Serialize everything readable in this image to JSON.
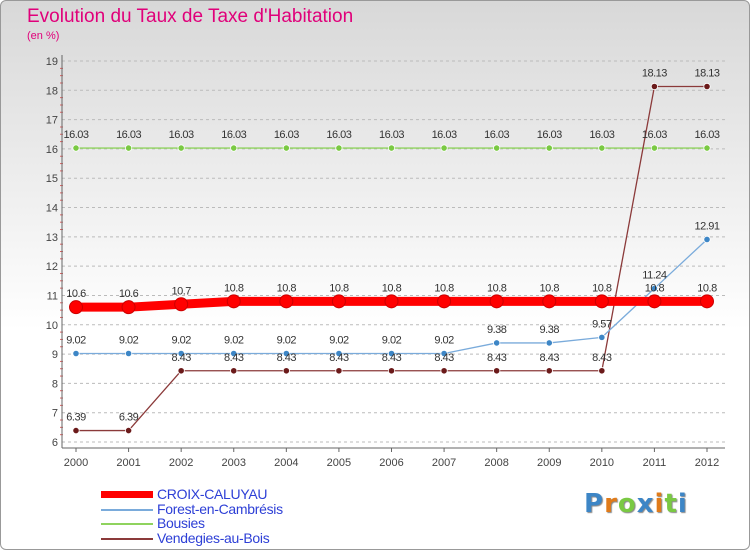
{
  "chart_data": {
    "type": "line",
    "title": "Evolution du Taux de Taxe d'Habitation",
    "ylabel": "(en %)",
    "xlabel": "",
    "categories": [
      "2000",
      "2001",
      "2002",
      "2003",
      "2004",
      "2005",
      "2006",
      "2007",
      "2008",
      "2009",
      "2010",
      "2011",
      "2012"
    ],
    "yticks": [
      "6",
      "7",
      "8",
      "9",
      "10",
      "11",
      "12",
      "13",
      "14",
      "15",
      "16",
      "17",
      "18",
      "19"
    ],
    "ylim": [
      6,
      19
    ],
    "grid": "dashed-horizontal",
    "series": [
      {
        "name": "CROIX-CALUYAU",
        "color": "#ff0000",
        "point_color": "#ff0000",
        "thick": true,
        "values": [
          10.6,
          10.6,
          10.7,
          10.8,
          10.8,
          10.8,
          10.8,
          10.8,
          10.8,
          10.8,
          10.8,
          10.8,
          10.8
        ],
        "labels": [
          "10.6",
          "10.6",
          "10.7",
          "10.8",
          "10.8",
          "10.8",
          "10.8",
          "10.8",
          "10.8",
          "10.8",
          "10.8",
          "10.8",
          "10.8"
        ]
      },
      {
        "name": "Forest-en-Cambrésis",
        "color": "#7aabdb",
        "point_color": "#3d86c6",
        "thick": false,
        "values": [
          9.02,
          9.02,
          9.02,
          9.02,
          9.02,
          9.02,
          9.02,
          9.02,
          9.38,
          9.38,
          9.57,
          11.24,
          12.91
        ],
        "labels": [
          "9.02",
          "9.02",
          "9.02",
          "9.02",
          "9.02",
          "9.02",
          "9.02",
          "9.02",
          "9.38",
          "9.38",
          "9.57",
          "11.24",
          "12.91"
        ]
      },
      {
        "name": "Bousies",
        "color": "#8fd35e",
        "point_color": "#7ac943",
        "thick": false,
        "values": [
          16.03,
          16.03,
          16.03,
          16.03,
          16.03,
          16.03,
          16.03,
          16.03,
          16.03,
          16.03,
          16.03,
          16.03,
          16.03
        ],
        "labels": [
          "16.03",
          "16.03",
          "16.03",
          "16.03",
          "16.03",
          "16.03",
          "16.03",
          "16.03",
          "16.03",
          "16.03",
          "16.03",
          "16.03",
          "16.03"
        ]
      },
      {
        "name": "Vendegies-au-Bois",
        "color": "#8b3a3a",
        "point_color": "#6b1a1a",
        "thick": false,
        "values": [
          6.39,
          6.39,
          8.43,
          8.43,
          8.43,
          8.43,
          8.43,
          8.43,
          8.43,
          8.43,
          8.43,
          18.13,
          18.13
        ],
        "labels": [
          "6.39",
          "6.39",
          "8.43",
          "8.43",
          "8.43",
          "8.43",
          "8.43",
          "8.43",
          "8.43",
          "8.43",
          "8.43",
          "18.13",
          "18.13"
        ]
      }
    ]
  },
  "legend": {
    "items": [
      {
        "label": "CROIX-CALUYAU",
        "color": "#ff0000"
      },
      {
        "label": "Forest-en-Cambrésis",
        "color": "#7aabdb"
      },
      {
        "label": "Bousies",
        "color": "#8fd35e"
      },
      {
        "label": "Vendegies-au-Bois",
        "color": "#8b3a3a"
      }
    ]
  },
  "brand": {
    "letters": [
      "P",
      "r",
      "o",
      "x",
      "i",
      "t",
      "i"
    ],
    "colors": [
      "#3d86c6",
      "#e07b1a",
      "#7ac943",
      "#3d86c6",
      "#e07b1a",
      "#7ac943",
      "#3d86c6"
    ]
  }
}
